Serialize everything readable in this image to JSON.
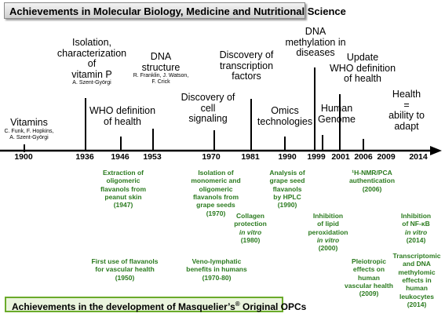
{
  "title": "Achievements in Molecular Biology, Medicine and Nutritional Science",
  "footer": {
    "text_before": "Achievements in the development of Masquelier’s",
    "sup": "®",
    "text_after": " Original OPCs"
  },
  "years": [
    "1900",
    "1936",
    "1946",
    "1953",
    "1970",
    "1981",
    "1990",
    "1999",
    "2001",
    "2006",
    "2009",
    "2014"
  ],
  "events": [
    {
      "id": "vitamins",
      "lines": [
        "Vitamins"
      ],
      "sub": [
        "C. Funk,  F. Hopkins,",
        "A. Szent-Györgi"
      ]
    },
    {
      "id": "vitamin-p",
      "lines": [
        "Isolation,",
        "characterization",
        "of",
        "vitamin P"
      ],
      "sub": [
        "A. Szent-Györgi"
      ]
    },
    {
      "id": "who-1946",
      "lines": [
        "WHO definition",
        "of health"
      ],
      "sub": []
    },
    {
      "id": "dna-structure",
      "lines": [
        "DNA",
        "structure"
      ],
      "sub": [
        "R. Franklin, J. Watson,",
        "F. Crick"
      ]
    },
    {
      "id": "cell-signaling",
      "lines": [
        "Discovery of",
        "cell",
        "signaling"
      ],
      "sub": []
    },
    {
      "id": "transcription",
      "lines": [
        "Discovery of",
        "transcription",
        "factors"
      ],
      "sub": []
    },
    {
      "id": "omics",
      "lines": [
        "Omics",
        "technologies"
      ],
      "sub": []
    },
    {
      "id": "dna-methylation",
      "lines": [
        "DNA",
        "methylation in",
        "diseases"
      ],
      "sub": []
    },
    {
      "id": "human-genome",
      "lines": [
        "Human",
        "Genome"
      ],
      "sub": []
    },
    {
      "id": "who-update",
      "lines": [
        "Update",
        "WHO definition",
        "of health"
      ],
      "sub": []
    },
    {
      "id": "health-adapt",
      "lines": [
        "Health",
        "=",
        "ability to",
        "adapt"
      ],
      "sub": []
    }
  ],
  "opc": [
    {
      "id": "peanut",
      "lines": [
        "Extraction of",
        "oligomeric",
        "flavanols from",
        "peanut skin",
        "(1947)"
      ]
    },
    {
      "id": "grape-seeds",
      "lines": [
        "Isolation of",
        "monomeric and",
        "oligomeric",
        "flavanols from",
        "grape seeds",
        "(1970)"
      ]
    },
    {
      "id": "hplc",
      "lines": [
        "Analysis of",
        "grape seed",
        "flavanols",
        "by HPLC",
        "(1990)"
      ]
    },
    {
      "id": "nmr",
      "lines": [
        "¹H-NMR/PCA",
        "authentication",
        "(2006)"
      ]
    },
    {
      "id": "collagen",
      "lines": [
        "Collagen",
        "protection",
        "in vitro",
        "(1980)"
      ]
    },
    {
      "id": "lipid",
      "lines": [
        "Inhibition",
        "of lipid",
        "peroxidation",
        "in vitro",
        "(2000)"
      ]
    },
    {
      "id": "nfkb",
      "lines": [
        "Inhibition",
        "of NF-κB",
        "in vitro",
        "(2014)"
      ]
    },
    {
      "id": "vascular-1950",
      "lines": [
        "First use of flavanols",
        "for vascular health",
        "(1950)"
      ]
    },
    {
      "id": "veno",
      "lines": [
        "Veno-lymphatic",
        "benefits in humans",
        "(1970-80)"
      ]
    },
    {
      "id": "pleiotropic",
      "lines": [
        "Pleiotropic",
        "effects on",
        "human",
        "vascular health",
        "(2009)"
      ]
    },
    {
      "id": "transcriptomic",
      "lines": [
        "Transcriptomic",
        "and DNA",
        "methylomic",
        "effects in",
        "human",
        "leukocytes",
        "(2014)"
      ]
    }
  ]
}
